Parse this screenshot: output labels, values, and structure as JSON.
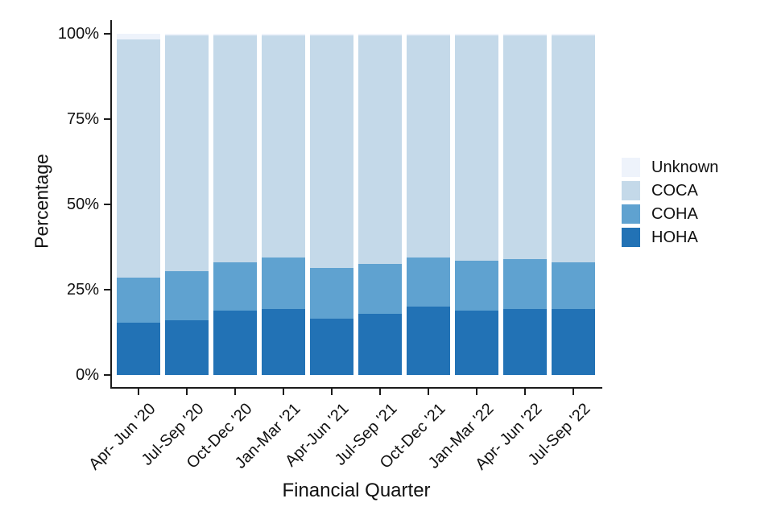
{
  "chart_data": {
    "type": "bar",
    "stacked": true,
    "percent_stacked": true,
    "title": "",
    "xlabel": "Financial Quarter",
    "ylabel": "Percentage",
    "ylim": [
      0,
      100
    ],
    "grid": false,
    "legend_position": "right",
    "y_tick_values": [
      0,
      25,
      50,
      75,
      100
    ],
    "y_tick_labels": [
      "0%",
      "25%",
      "50%",
      "75%",
      "100%"
    ],
    "categories": [
      "Apr- Jun '20",
      "Jul-Sep '20",
      "Oct-Dec '20",
      "Jan-Mar '21",
      "Apr-Jun '21",
      "Jul-Sep '21",
      "Oct-Dec '21",
      "Jan-Mar '22",
      "Apr- Jun '22",
      "Jul-Sep '22"
    ],
    "series": [
      {
        "name": "HOHA",
        "color": "#2272b5",
        "values": [
          15.5,
          16.0,
          19.0,
          19.5,
          16.5,
          18.0,
          20.0,
          19.0,
          19.5,
          19.5
        ]
      },
      {
        "name": "COHA",
        "color": "#5fa2d0",
        "values": [
          13.0,
          14.5,
          14.0,
          15.0,
          15.0,
          14.5,
          14.5,
          14.5,
          14.5,
          13.5
        ]
      },
      {
        "name": "COCA",
        "color": "#c4d9e9",
        "values": [
          69.7,
          69.0,
          66.5,
          65.0,
          68.0,
          67.0,
          65.0,
          66.0,
          65.5,
          66.5
        ]
      },
      {
        "name": "Unknown",
        "color": "#eef3fb",
        "values": [
          1.8,
          0.5,
          0.5,
          0.5,
          0.5,
          0.5,
          0.5,
          0.5,
          0.5,
          0.5
        ]
      }
    ],
    "legend_order": [
      "Unknown",
      "COCA",
      "COHA",
      "HOHA"
    ]
  }
}
